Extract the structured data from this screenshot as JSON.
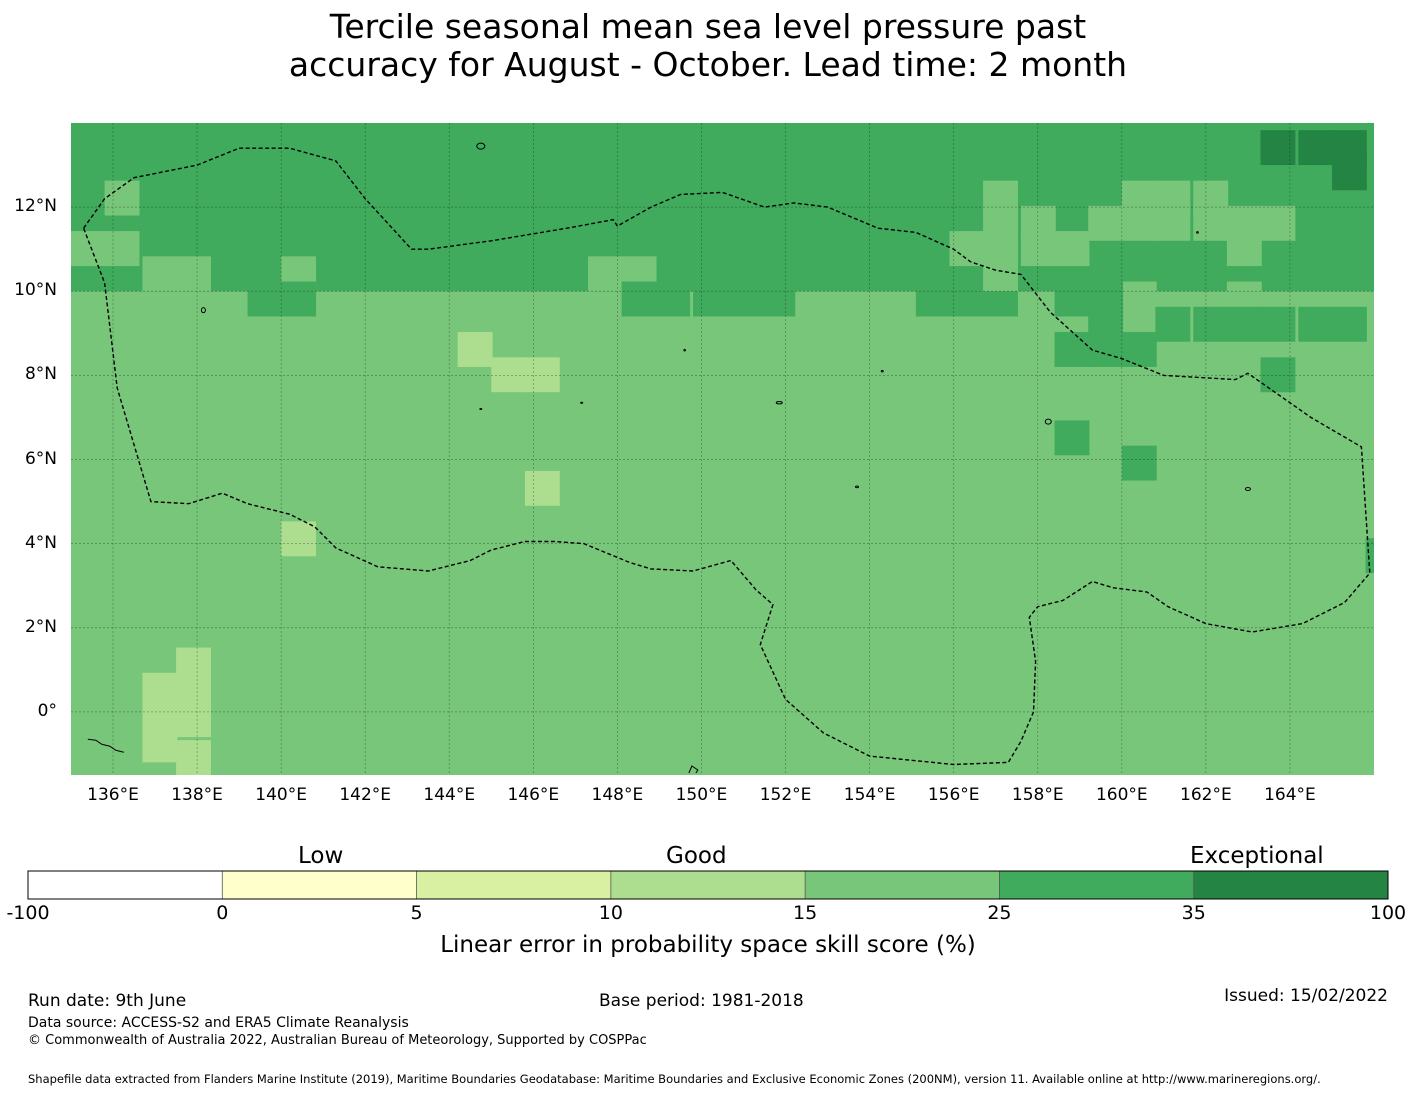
{
  "title": {
    "line1": "Tercile seasonal mean sea level pressure past",
    "line2": "accuracy for August - October. Lead time: 2 month"
  },
  "map": {
    "lat_labels": [
      "12°N",
      "10°N",
      "8°N",
      "6°N",
      "4°N",
      "2°N",
      "0°"
    ],
    "lon_labels": [
      "136°E",
      "138°E",
      "140°E",
      "142°E",
      "144°E",
      "146°E",
      "148°E",
      "150°E",
      "152°E",
      "154°E",
      "156°E",
      "158°E",
      "160°E",
      "162°E",
      "164°E"
    ],
    "extent": {
      "lon_min": 135.0,
      "lon_max": 166.0,
      "lat_min": -1.5,
      "lat_max": 14.0
    },
    "grid_cell_deg": 0.83,
    "eez_boundary_style": "dashed",
    "base_category": "15-25",
    "north_band_category": "25-35",
    "north_band_south_edge_lat": 10.0
  },
  "colorbar": {
    "categories": [
      "Low",
      "Good",
      "Exceptional"
    ],
    "ticks": [
      "-100",
      "0",
      "5",
      "10",
      "15",
      "25",
      "35",
      "100"
    ],
    "colors": [
      "#ffffff",
      "#ffffcc",
      "#d9f0a3",
      "#addd8e",
      "#78c679",
      "#41ab5d",
      "#238443"
    ],
    "title": "Linear error in probability space skill score (%)"
  },
  "footer": {
    "run_date": "Run date: 9th June",
    "base_period": "Base period: 1981-2018",
    "issued": "Issued: 15/02/2022",
    "data_source": "Data source: ACCESS-S2 and ERA5 Climate Reanalysis",
    "copyright": "© Commonwealth of Australia 2022, Australian Bureau of Meteorology, Supported by COSPPac",
    "shapefile": "Shapefile data extracted from Flanders Marine Institute (2019), Maritime Boundaries Geodatabase: Maritime Boundaries and Exclusive Economic Zones (200NM), version 11. Available online at http://www.marineregions.org/."
  }
}
